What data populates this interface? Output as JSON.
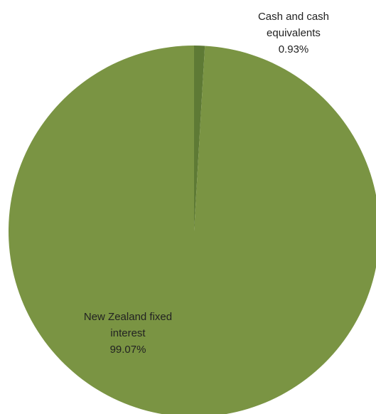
{
  "chart_data": {
    "type": "pie",
    "title": "",
    "start_angle_deg": 0,
    "direction": "clockwise",
    "slices": [
      {
        "label_lines": [
          "Cash and cash",
          "equivalents"
        ],
        "value_label": "0.93%",
        "value": 0.93,
        "color": "#5e7a35"
      },
      {
        "label_lines": [
          "New Zealand fixed",
          "interest"
        ],
        "value_label": "99.07%",
        "value": 99.07,
        "color": "#7a9443"
      }
    ]
  }
}
